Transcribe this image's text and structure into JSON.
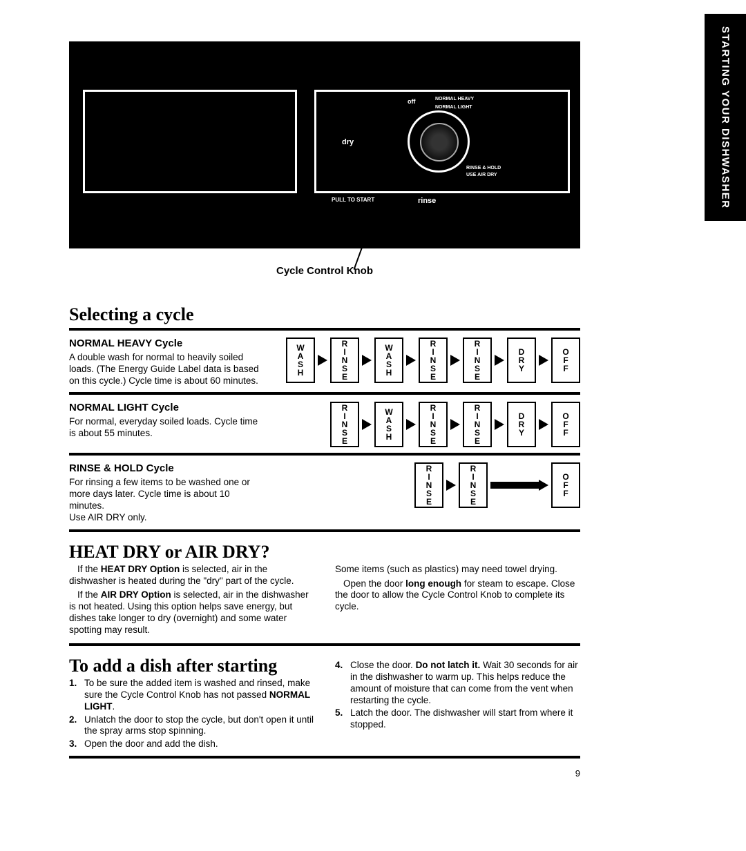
{
  "sideTab": "STARTING YOUR DISHWASHER",
  "knob": {
    "off": "off",
    "normalHeavy": "NORMAL HEAVY",
    "normalLight": "NORMAL LIGHT",
    "rinseHold": "RINSE & HOLD",
    "useAirDry": "USE AIR DRY",
    "dry": "dry",
    "rinse": "rinse",
    "pullToStart": "PULL TO START",
    "caption": "Cycle Control Knob"
  },
  "selecting": {
    "title": "Selecting a cycle",
    "heavy": {
      "title": "NORMAL HEAVY Cycle",
      "text": "A double wash for normal to heavily soiled loads. (The Energy Guide Label data is based on this cycle.) Cycle time is about 60 minutes.",
      "stages": [
        "WASH",
        "RINSE",
        "WASH",
        "RINSE",
        "RINSE",
        "DRY",
        "OFF"
      ]
    },
    "light": {
      "title": "NORMAL LIGHT Cycle",
      "text": "For normal, everyday soiled loads. Cycle time is about 55 minutes.",
      "stages": [
        "RINSE",
        "WASH",
        "RINSE",
        "RINSE",
        "DRY",
        "OFF"
      ]
    },
    "hold": {
      "title": "RINSE & HOLD Cycle",
      "text1": "For rinsing a few items to be washed one or more days later. Cycle time is about 10 minutes.",
      "text2": "Use AIR DRY only.",
      "stages": [
        "RINSE",
        "RINSE"
      ],
      "final": "OFF"
    }
  },
  "heatDry": {
    "title": "HEAT DRY or AIR DRY?",
    "p1a": "If the ",
    "p1b": "HEAT DRY Option",
    "p1c": " is selected, air in the dishwasher is heated during the \"dry\" part of the cycle.",
    "p2a": "If the ",
    "p2b": "AIR DRY Option",
    "p2c": " is selected, air in the dishwasher is not heated. Using this option helps save energy, but dishes take longer to dry (overnight) and some water spotting may result.",
    "p3": "Some items (such as plastics) may need towel drying.",
    "p4a": "Open the door ",
    "p4b": "long enough",
    "p4c": " for steam to escape. Close the door to allow the Cycle Control Knob to complete its cycle."
  },
  "addDish": {
    "title": "To add a dish after starting",
    "s1a": "To be sure the added item is washed and rinsed, make sure the Cycle Control Knob has not passed ",
    "s1b": "NORMAL LIGHT",
    "s1c": ".",
    "s2": "Unlatch the door to stop the cycle, but don't open it until the spray arms stop spinning.",
    "s3": "Open the door and add the dish.",
    "s4a": "Close the door. ",
    "s4b": "Do not latch it.",
    "s4c": " Wait 30 seconds for air in the dishwasher to warm up. This helps reduce the amount of moisture that can come from the vent when restarting the cycle.",
    "s5": "Latch the door. The dishwasher will start from where it stopped."
  },
  "pageNum": "9"
}
